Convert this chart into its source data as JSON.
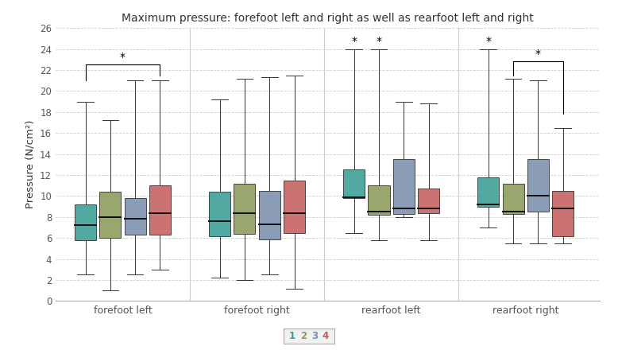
{
  "title": "Maximum pressure: forefoot left and right as well as rearfoot left and right",
  "ylabel": "Pressure (N/cm²)",
  "groups": [
    "forefoot left",
    "forefoot right",
    "rearfoot left",
    "rearfoot right"
  ],
  "series_labels": [
    "1",
    "2",
    "3",
    "4"
  ],
  "colors": [
    "#3a9e96",
    "#8b9a5a",
    "#7b8fad",
    "#c45e5e"
  ],
  "ylim": [
    0,
    26
  ],
  "yticks": [
    0,
    2,
    4,
    6,
    8,
    10,
    12,
    14,
    16,
    18,
    20,
    22,
    24,
    26
  ],
  "box_data": {
    "forefoot left": [
      {
        "whislo": 2.5,
        "q1": 5.8,
        "med": 7.2,
        "q3": 9.2,
        "whishi": 19.0
      },
      {
        "whislo": 1.0,
        "q1": 6.0,
        "med": 8.0,
        "q3": 10.4,
        "whishi": 17.2
      },
      {
        "whislo": 2.5,
        "q1": 6.3,
        "med": 7.8,
        "q3": 9.8,
        "whishi": 21.0
      },
      {
        "whislo": 3.0,
        "q1": 6.3,
        "med": 8.4,
        "q3": 11.0,
        "whishi": 21.0
      }
    ],
    "forefoot right": [
      {
        "whislo": 2.2,
        "q1": 6.2,
        "med": 7.6,
        "q3": 10.4,
        "whishi": 19.2
      },
      {
        "whislo": 2.0,
        "q1": 6.4,
        "med": 8.4,
        "q3": 11.2,
        "whishi": 21.2
      },
      {
        "whislo": 2.5,
        "q1": 5.9,
        "med": 7.3,
        "q3": 10.5,
        "whishi": 21.3
      },
      {
        "whislo": 1.2,
        "q1": 6.5,
        "med": 8.4,
        "q3": 11.5,
        "whishi": 21.5
      }
    ],
    "rearfoot left": [
      {
        "whislo": 6.5,
        "q1": 9.8,
        "med": 9.9,
        "q3": 12.5,
        "whishi": 24.0
      },
      {
        "whislo": 5.8,
        "q1": 8.2,
        "med": 8.5,
        "q3": 11.0,
        "whishi": 24.0
      },
      {
        "whislo": 8.0,
        "q1": 8.3,
        "med": 8.8,
        "q3": 13.5,
        "whishi": 19.0
      },
      {
        "whislo": 5.8,
        "q1": 8.4,
        "med": 8.8,
        "q3": 10.7,
        "whishi": 18.8
      }
    ],
    "rearfoot right": [
      {
        "whislo": 7.0,
        "q1": 9.0,
        "med": 9.2,
        "q3": 11.8,
        "whishi": 24.0
      },
      {
        "whislo": 5.5,
        "q1": 8.3,
        "med": 8.5,
        "q3": 11.2,
        "whishi": 21.2
      },
      {
        "whislo": 5.5,
        "q1": 8.5,
        "med": 10.0,
        "q3": 13.5,
        "whishi": 21.0
      },
      {
        "whislo": 5.5,
        "q1": 6.2,
        "med": 8.8,
        "q3": 10.5,
        "whishi": 16.5
      }
    ]
  },
  "background_color": "#ffffff",
  "grid_color": "#cccccc",
  "box_width": 0.16
}
